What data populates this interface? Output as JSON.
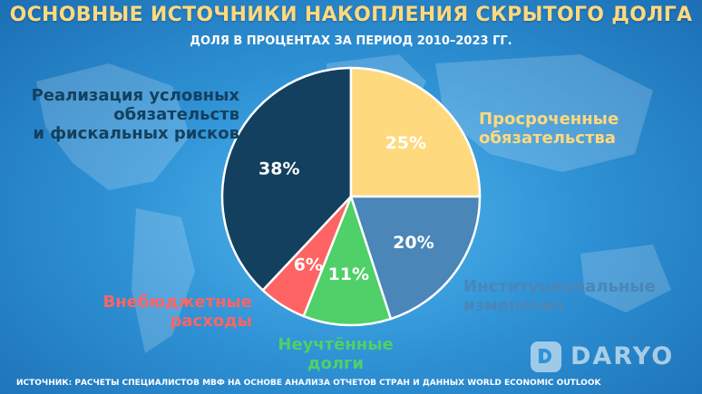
{
  "header": {
    "title": "ОСНОВНЫЕ ИСТОЧНИКИ НАКОПЛЕНИЯ СКРЫТОГО ДОЛГА",
    "subtitle": "ДОЛЯ В ПРОЦЕНТАХ ЗА ПЕРИОД 2010–2023 ГГ."
  },
  "chart_data": {
    "type": "pie",
    "title": "ОСНОВНЫЕ ИСТОЧНИКИ НАКОПЛЕНИЯ СКРЫТОГО ДОЛГА",
    "subtitle": "ДОЛЯ В ПРОЦЕНТАХ ЗА ПЕРИОД 2010–2023 ГГ.",
    "slices": [
      {
        "label_lines": [
          "Реализация условных",
          "обязательств",
          "и фискальных рисков"
        ],
        "value": 38,
        "value_label": "38%",
        "color": "#13405f"
      },
      {
        "label_lines": [
          "Просроченные",
          "обязательства"
        ],
        "value": 25,
        "value_label": "25%",
        "color": "#ffd97e"
      },
      {
        "label_lines": [
          "Институциональные",
          "изменения"
        ],
        "value": 20,
        "value_label": "20%",
        "color": "#4a86b8"
      },
      {
        "label_lines": [
          "Неучтённые",
          "долги"
        ],
        "value": 11,
        "value_label": "11%",
        "color": "#4fd068"
      },
      {
        "label_lines": [
          "Внебюджетные",
          "расходы"
        ],
        "value": 6,
        "value_label": "6%",
        "color": "#ff6464"
      }
    ]
  },
  "footer": {
    "source": "ИСТОЧНИК: РАСЧЕТЫ СПЕЦИАЛИСТОВ МВФ НА ОСНОВЕ АНАЛИЗА ОТЧЕТОВ СТРАН И ДАННЫХ WORLD ECONOMIC OUTLOOK"
  },
  "brand": {
    "logo_text": "DARYO"
  }
}
